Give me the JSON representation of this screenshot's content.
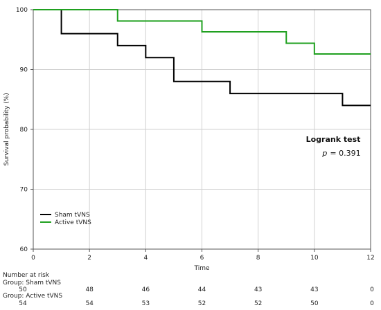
{
  "chart_data": {
    "type": "line",
    "step": true,
    "title": "",
    "xlabel": "Time",
    "ylabel": "Survival probability (%)",
    "xlim": [
      0,
      12
    ],
    "ylim": [
      60,
      100
    ],
    "x_ticks": [
      0,
      2,
      4,
      6,
      8,
      10,
      12
    ],
    "y_ticks": [
      60,
      70,
      80,
      90,
      100
    ],
    "grid": true,
    "legend_position": "bottom-left",
    "series": [
      {
        "name": "Sham tVNS",
        "color": "#000000",
        "x": [
          0,
          1,
          3,
          4,
          5,
          7,
          11,
          12
        ],
        "y": [
          100,
          96,
          94,
          92,
          88,
          86,
          84,
          84
        ]
      },
      {
        "name": "Active tVNS",
        "color": "#1fa01f",
        "x": [
          0,
          3,
          6,
          9,
          10,
          12
        ],
        "y": [
          100,
          98.1,
          96.3,
          94.4,
          92.6,
          92.6
        ]
      }
    ],
    "annotation": {
      "title": "Logrank test",
      "p_label": "p",
      "p_value": "= 0.391"
    },
    "risk_table": {
      "heading": "Number at risk",
      "times": [
        0,
        2,
        4,
        6,
        8,
        10,
        12
      ],
      "rows": [
        {
          "label": "Group: Sham tVNS",
          "values": [
            "50",
            "48",
            "46",
            "44",
            "43",
            "43",
            "0"
          ]
        },
        {
          "label": "Group: Active tVNS",
          "values": [
            "54",
            "54",
            "53",
            "52",
            "52",
            "50",
            "0"
          ]
        }
      ]
    }
  }
}
